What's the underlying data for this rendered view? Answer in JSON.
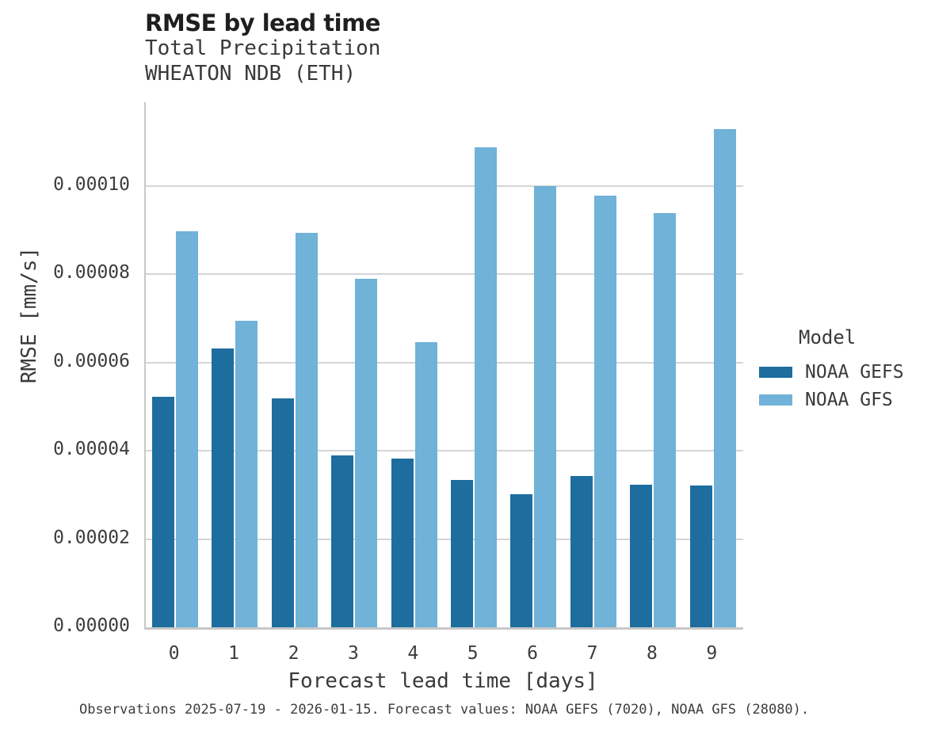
{
  "figure": {
    "subtitle_line1": "Total Precipitation",
    "subtitle_line2": "WHEATON NDB (ETH)",
    "caption": "Observations 2025-07-19 - 2026-01-15. Forecast values: NOAA GEFS (7020), NOAA GFS (28080)."
  },
  "colors": {
    "gefs_dark_blue": "#1d6d9e",
    "gfs_light_blue": "#70b2d8",
    "gridline": "#d5d5d5",
    "axis_spine": "#c8c8c8",
    "title_text": "#1f1f1f",
    "body_text": "#3a3a3a"
  },
  "chart_data": {
    "type": "bar",
    "title": "RMSE by lead time",
    "subtitle": [
      "Total Precipitation",
      "WHEATON NDB (ETH)"
    ],
    "xlabel": "Forecast lead time [days]",
    "ylabel": "RMSE [mm/s]",
    "categories": [
      "0",
      "1",
      "2",
      "3",
      "4",
      "5",
      "6",
      "7",
      "8",
      "9"
    ],
    "series": [
      {
        "name": "NOAA GEFS",
        "color": "#1d6d9e",
        "values": [
          5.22e-05,
          6.31e-05,
          5.19e-05,
          3.89e-05,
          3.83e-05,
          3.33e-05,
          3.01e-05,
          3.43e-05,
          3.23e-05,
          3.21e-05
        ]
      },
      {
        "name": "NOAA GFS",
        "color": "#70b2d8",
        "values": [
          8.97e-05,
          6.94e-05,
          8.93e-05,
          7.89e-05,
          6.46e-05,
          0.0001087,
          0.0001,
          9.79e-05,
          9.39e-05,
          0.0001129
        ]
      }
    ],
    "ylim": [
      0,
      0.000119
    ],
    "yticks": [
      0.0,
      2e-05,
      4e-05,
      6e-05,
      8e-05,
      0.0001
    ],
    "ytick_labels": [
      "0.00000",
      "0.00002",
      "0.00004",
      "0.00006",
      "0.00008",
      "0.00010"
    ],
    "grid": true,
    "legend_title": "Model",
    "legend_position": "right"
  }
}
